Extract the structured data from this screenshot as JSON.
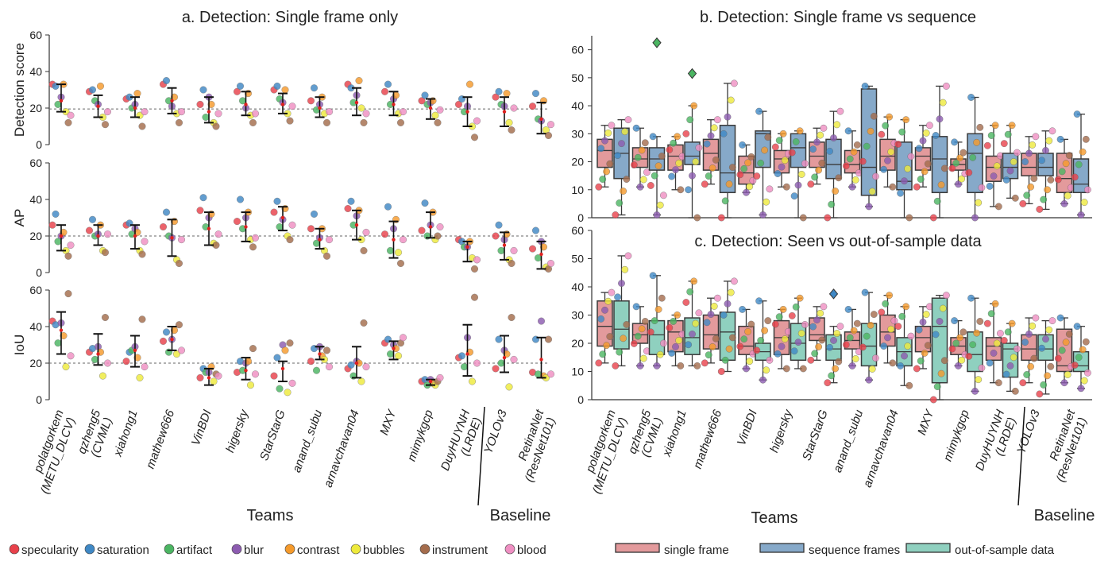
{
  "teams": [
    "polatgorkem (METU_DLCV)",
    "qzheng5 (CVML)",
    "xiahong1",
    "mathew666",
    "VinBDI",
    "higersky",
    "StarStarG",
    "anand_subu",
    "arnavchavan04",
    "MXY",
    "mimykgcp",
    "DuyHUYNH (LRDE)",
    "YOLOv3",
    "RetinaNet (ResNet101)"
  ],
  "team_lines": [
    [
      "polatgorkem",
      "(METU_DLCV)"
    ],
    [
      "qzheng5",
      "(CVML)"
    ],
    [
      "xiahong1"
    ],
    [
      "mathew666"
    ],
    [
      "VinBDI"
    ],
    [
      "higersky"
    ],
    [
      "StarStarG"
    ],
    [
      "anand_subu"
    ],
    [
      "arnavchavan04"
    ],
    [
      "MXY"
    ],
    [
      "mimykgcp"
    ],
    [
      "DuyHUYNH",
      "(LRDE)"
    ],
    [
      "YOLOv3"
    ],
    [
      "RetinaNet",
      "(ResNet101)"
    ]
  ],
  "group_labels": {
    "teams": "Teams",
    "baseline": "Baseline"
  },
  "categories_legend": [
    {
      "name": "specularity",
      "color": "#e8414b"
    },
    {
      "name": "saturation",
      "color": "#3f88c5"
    },
    {
      "name": "artifact",
      "color": "#4bb562"
    },
    {
      "name": "blur",
      "color": "#8c5bb0"
    },
    {
      "name": "contrast",
      "color": "#f59a2c"
    },
    {
      "name": "bubbles",
      "color": "#eeea3c"
    },
    {
      "name": "instrument",
      "color": "#a46c4c"
    },
    {
      "name": "blood",
      "color": "#ef8fc2"
    }
  ],
  "box_legend": [
    {
      "name": "single frame",
      "color": "#e39a9c"
    },
    {
      "name": "sequence frames",
      "color": "#86a9c9"
    },
    {
      "name": "out-of-sample data",
      "color": "#8fd0bf"
    }
  ],
  "chart_data": [
    {
      "id": "a",
      "type": "scatter",
      "title": "a. Detection: Single frame only",
      "panels": [
        {
          "ylabel": "Detection score",
          "ylim": [
            0,
            60
          ],
          "yticks": [
            0,
            20,
            40,
            60
          ],
          "ref_line": 19.5,
          "mean": [
            24,
            21,
            20,
            24,
            18,
            22,
            22,
            20,
            23,
            22,
            20,
            18,
            18,
            14
          ],
          "ci_low": [
            18,
            15,
            15,
            17,
            12,
            16,
            17,
            15,
            16,
            16,
            14,
            10,
            10,
            6
          ],
          "ci_high": [
            33,
            27,
            26,
            31,
            26,
            29,
            28,
            26,
            31,
            29,
            25,
            26,
            26,
            23
          ],
          "values": [
            [
              33,
              32,
              22,
              26,
              33,
              18,
              12,
              16
            ],
            [
              29,
              30,
              24,
              22,
              32,
              15,
              11,
              18
            ],
            [
              25,
              26,
              20,
              22,
              28,
              16,
              10,
              18
            ],
            [
              33,
              35,
              24,
              21,
              26,
              17,
              12,
              18
            ],
            [
              22,
              30,
              15,
              26,
              22,
              12,
              10,
              17
            ],
            [
              29,
              32,
              24,
              20,
              28,
              16,
              12,
              17
            ],
            [
              30,
              32,
              25,
              23,
              30,
              17,
              13,
              21
            ],
            [
              24,
              31,
              19,
              22,
              26,
              17,
              12,
              18
            ],
            [
              33,
              31,
              23,
              27,
              35,
              20,
              12,
              17
            ],
            [
              29,
              33,
              22,
              25,
              27,
              17,
              12,
              18
            ],
            [
              24,
              27,
              22,
              23,
              24,
              16,
              12,
              19
            ],
            [
              22,
              25,
              18,
              21,
              33,
              10,
              4,
              13
            ],
            [
              26,
              29,
              22,
              21,
              28,
              12,
              8,
              20
            ],
            [
              21,
              28,
              14,
              13,
              24,
              8,
              5,
              11
            ]
          ]
        },
        {
          "ylabel": "AP",
          "ylim": [
            0,
            60
          ],
          "yticks": [
            0,
            20,
            40,
            60
          ],
          "ref_line": 20,
          "mean": [
            20,
            20,
            20,
            19,
            24,
            25,
            30,
            18,
            26,
            18,
            25,
            14,
            15,
            10
          ],
          "ci_low": [
            12,
            15,
            13,
            9,
            15,
            17,
            23,
            13,
            18,
            8,
            19,
            6,
            7,
            2
          ],
          "ci_high": [
            26,
            26,
            26,
            29,
            33,
            33,
            36,
            24,
            34,
            28,
            33,
            17,
            22,
            17
          ],
          "values": [
            [
              26,
              32,
              17,
              20,
              22,
              12,
              9,
              15
            ],
            [
              23,
              29,
              20,
              21,
              26,
              12,
              11,
              21
            ],
            [
              26,
              27,
              21,
              24,
              22,
              12,
              10,
              17
            ],
            [
              25,
              33,
              20,
              19,
              28,
              7,
              5,
              18
            ],
            [
              34,
              41,
              25,
              30,
              32,
              16,
              15,
              21
            ],
            [
              28,
              40,
              24,
              30,
              33,
              18,
              14,
              19
            ],
            [
              33,
              39,
              25,
              29,
              35,
              20,
              18,
              26
            ],
            [
              24,
              32,
              16,
              19,
              24,
              12,
              9,
              18
            ],
            [
              35,
              39,
              26,
              31,
              34,
              18,
              12,
              22
            ],
            [
              21,
              36,
              12,
              24,
              29,
              11,
              5,
              18
            ],
            [
              23,
              38,
              20,
              26,
              33,
              18,
              20,
              25
            ],
            [
              18,
              17,
              14,
              14,
              17,
              8,
              2,
              7
            ],
            [
              20,
              26,
              12,
              18,
              21,
              7,
              5,
              12
            ],
            [
              13,
              23,
              8,
              17,
              14,
              3,
              2,
              5
            ]
          ]
        },
        {
          "ylabel": "IoU",
          "ylim": [
            0,
            60
          ],
          "yticks": [
            0,
            20,
            40,
            60
          ],
          "ref_line": 20,
          "mean": [
            38,
            25,
            27,
            33,
            12,
            16,
            17,
            25,
            20,
            28,
            10,
            25,
            23,
            22
          ],
          "ci_low": [
            25,
            19,
            18,
            27,
            8,
            11,
            10,
            22,
            12,
            22,
            8,
            13,
            15,
            12
          ],
          "ci_high": [
            48,
            36,
            35,
            40,
            17,
            23,
            21,
            29,
            29,
            32,
            11,
            41,
            35,
            34
          ],
          "values": [
            [
              43,
              41,
              31,
              42,
              35,
              18,
              58,
              24
            ],
            [
              26,
              28,
              22,
              29,
              26,
              13,
              45,
              20
            ],
            [
              21,
              26,
              27,
              29,
              23,
              12,
              44,
              18
            ],
            [
              32,
              37,
              26,
              33,
              38,
              25,
              41,
              27
            ],
            [
              12,
              17,
              15,
              15,
              18,
              10,
              14,
              13
            ],
            [
              15,
              21,
              16,
              20,
              21,
              8,
              28,
              14
            ],
            [
              13,
              23,
              6,
              30,
              27,
              4,
              31,
              9
            ],
            [
              21,
              28,
              16,
              29,
              24,
              22,
              27,
              18
            ],
            [
              17,
              19,
              13,
              21,
              20,
              10,
              42,
              18
            ],
            [
              31,
              33,
              25,
              30,
              28,
              24,
              31,
              34
            ],
            [
              10,
              11,
              8,
              11,
              9,
              8,
              10,
              12
            ],
            [
              23,
              24,
              18,
              34,
              26,
              10,
              56,
              20
            ],
            [
              17,
              33,
              20,
              27,
              25,
              7,
              45,
              22
            ],
            [
              15,
              33,
              14,
              43,
              13,
              12,
              33,
              14
            ]
          ]
        }
      ]
    },
    {
      "id": "b",
      "type": "box",
      "title": "b. Detection: Single frame vs sequence",
      "ylim": [
        0,
        65
      ],
      "yticks": [
        0,
        10,
        20,
        30,
        40,
        50,
        60
      ],
      "series": [
        {
          "name": "single frame",
          "stats": [
            [
              11,
              18,
              24,
              28,
              33
            ],
            [
              11,
              18,
              21,
              25,
              32
            ],
            [
              10,
              17,
              22,
              26,
              29
            ],
            [
              12,
              17,
              23,
              28,
              35
            ],
            [
              9,
              12,
              16,
              22,
              26
            ],
            [
              11,
              16,
              21,
              24,
              30
            ],
            [
              12,
              18,
              22,
              27,
              32
            ],
            [
              11,
              16,
              19,
              24,
              31
            ],
            [
              11,
              17,
              22,
              28,
              36
            ],
            [
              11,
              17,
              22,
              25,
              33
            ],
            [
              12,
              17,
              19,
              21,
              27
            ],
            [
              4,
              13,
              18,
              22,
              33
            ],
            [
              5,
              15,
              18,
              23,
              29
            ],
            [
              5,
              9,
              14,
              23,
              28
            ]
          ]
        },
        {
          "name": "sequence frames",
          "stats": [
            [
              1,
              14,
              23,
              32,
              35
            ],
            [
              1,
              17,
              21,
              25,
              29
            ],
            [
              0,
              19,
              22,
              27,
              40
            ],
            [
              0,
              9,
              16,
              33,
              48
            ],
            [
              1,
              18,
              30,
              31,
              38
            ],
            [
              0,
              18,
              25,
              30,
              31
            ],
            [
              0,
              14,
              19,
              28,
              38
            ],
            [
              4,
              8,
              18,
              46,
              47
            ],
            [
              0,
              10,
              13,
              27,
              35
            ],
            [
              0,
              9,
              21,
              29,
              47
            ],
            [
              0,
              9,
              23,
              30,
              43
            ],
            [
              7,
              14,
              18,
              23,
              33
            ],
            [
              3,
              15,
              18,
              23,
              31
            ],
            [
              1,
              9,
              12,
              21,
              37
            ]
          ]
        }
      ],
      "outliers": [
        [
          62.5,
          1
        ],
        [
          51.5,
          2
        ]
      ]
    },
    {
      "id": "c",
      "type": "box",
      "title": "c. Detection: Seen vs out-of-sample data",
      "ylim": [
        0,
        60
      ],
      "yticks": [
        0,
        10,
        20,
        30,
        40,
        50,
        60
      ],
      "series": [
        {
          "name": "single frame",
          "stats": [
            [
              13,
              19,
              26,
              35,
              38
            ],
            [
              12,
              20,
              23,
              27,
              33
            ],
            [
              12,
              17,
              24,
              28,
              30
            ],
            [
              13,
              18,
              23,
              30,
              36
            ],
            [
              11,
              16,
              19,
              26,
              32
            ],
            [
              11,
              16,
              22,
              28,
              32
            ],
            [
              14,
              21,
              23,
              29,
              33
            ],
            [
              12,
              18,
              21,
              24,
              32
            ],
            [
              13,
              19,
              24,
              30,
              37
            ],
            [
              11,
              17,
              22,
              26,
              33
            ],
            [
              12,
              16,
              19,
              22,
              28
            ],
            [
              6,
              14,
              19,
              22,
              34
            ],
            [
              6,
              14,
              18,
              23,
              29
            ],
            [
              6,
              10,
              12,
              25,
              29
            ]
          ]
        },
        {
          "name": "out-of-sample data",
          "stats": [
            [
              12,
              18,
              25,
              35,
              51
            ],
            [
              12,
              16,
              23,
              28,
              44
            ],
            [
              12,
              16,
              22,
              29,
              42
            ],
            [
              10,
              14,
              24,
              31,
              42
            ],
            [
              7,
              14,
              17,
              20,
              35
            ],
            [
              11,
              14,
              20,
              27,
              36
            ],
            [
              6,
              14,
              18,
              23,
              26
            ],
            [
              7,
              12,
              19,
              27,
              38
            ],
            [
              5,
              12,
              17,
              22,
              33
            ],
            [
              0,
              6,
              26,
              36,
              37
            ],
            [
              3,
              10,
              16,
              24,
              36
            ],
            [
              3,
              8,
              18,
              20,
              27
            ],
            [
              2,
              14,
              18,
              23,
              28
            ],
            [
              4,
              10,
              12,
              17,
              26
            ]
          ]
        }
      ],
      "outliers": [
        [
          37.5,
          6
        ]
      ]
    }
  ]
}
